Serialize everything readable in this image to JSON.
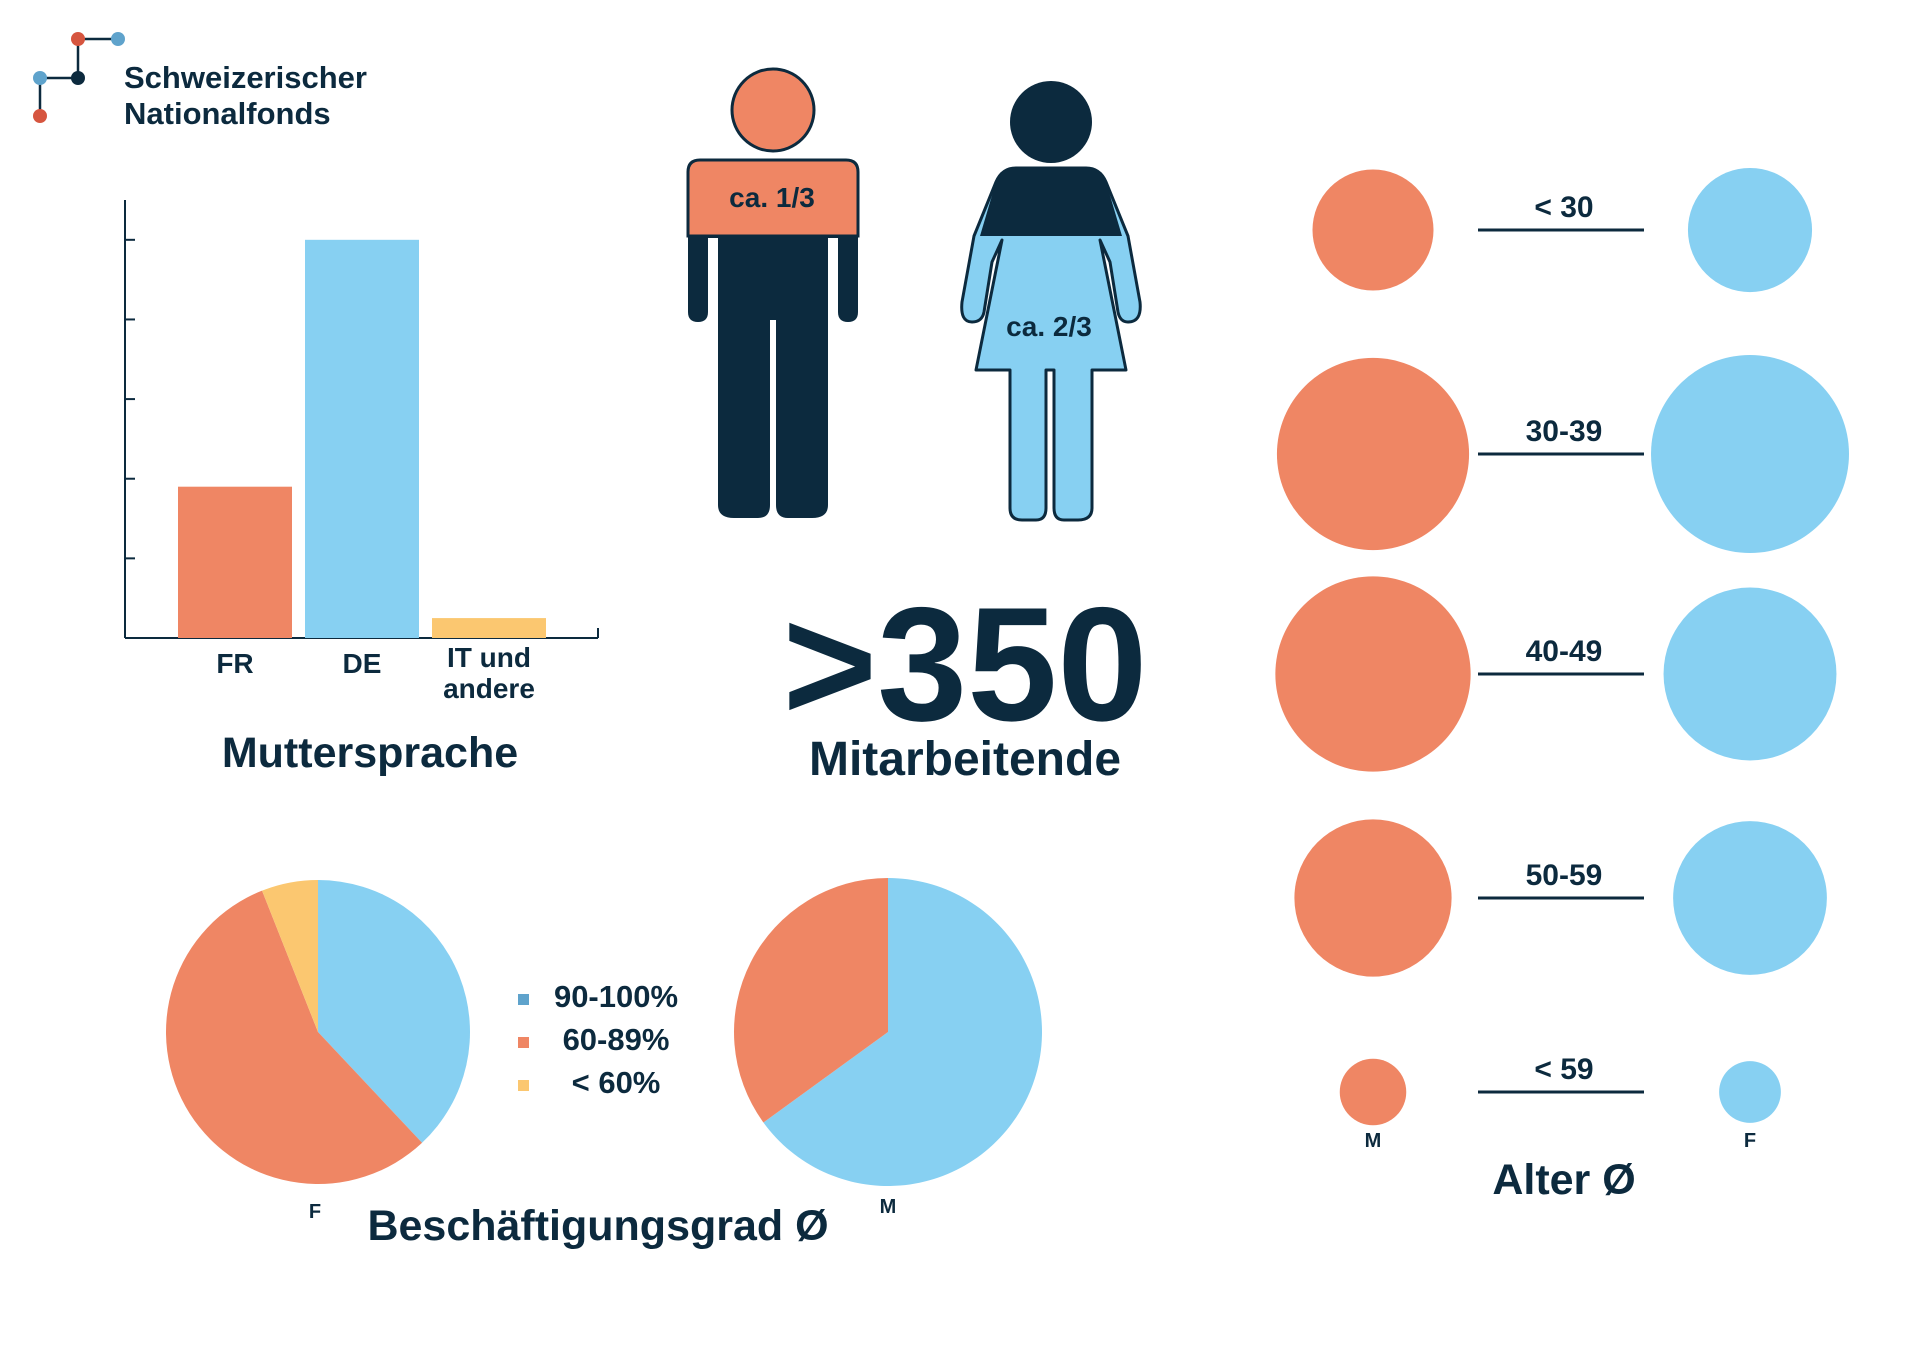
{
  "colors": {
    "navy": "#0c2a3e",
    "orange": "#ef8664",
    "blue": "#87d0f2",
    "yellow": "#fbc770",
    "logo_orange": "#d6553f",
    "logo_blue": "#5fa3cc"
  },
  "logo": {
    "line1": "Schweizerischer",
    "line2": "Nationalfonds"
  },
  "headline": {
    "value": ">350",
    "label": "Mitarbeitende"
  },
  "figures": {
    "male_share_label": "ca. 1/3",
    "female_share_label": "ca. 2/3"
  },
  "chart_data": [
    {
      "type": "bar",
      "title": "Muttersprache",
      "categories": [
        "FR",
        "DE",
        "IT und andere"
      ],
      "category_lines": [
        [
          "FR"
        ],
        [
          "DE"
        ],
        [
          "IT und",
          "andere"
        ]
      ],
      "values": [
        19,
        50,
        2.5
      ],
      "ylim": [
        0,
        55
      ],
      "yticks": [
        10,
        20,
        30,
        40,
        50
      ],
      "colors": [
        "#ef8664",
        "#87d0f2",
        "#fbc770"
      ],
      "show_tick_labels": false
    },
    {
      "type": "pie",
      "title": "Beschäftigungsgrad Ø",
      "legend": [
        "90-100%",
        "60-89%",
        "< 60%"
      ],
      "legend_colors": [
        "#5fa3cc",
        "#ef8664",
        "#fbc770"
      ],
      "pies": [
        {
          "name": "F",
          "slices": [
            {
              "label": "90-100%",
              "value": 38,
              "color": "#87d0f2"
            },
            {
              "label": "60-89%",
              "value": 56,
              "color": "#ef8664"
            },
            {
              "label": "< 60%",
              "value": 6,
              "color": "#fbc770"
            }
          ]
        },
        {
          "name": "M",
          "slices": [
            {
              "label": "90-100%",
              "value": 65,
              "color": "#87d0f2"
            },
            {
              "label": "60-89%",
              "value": 35,
              "color": "#ef8664"
            }
          ]
        }
      ]
    },
    {
      "type": "bubble",
      "title": "Alter Ø",
      "groups": [
        "M",
        "F"
      ],
      "categories": [
        "< 30",
        "30-39",
        "40-49",
        "50-59",
        "< 59"
      ],
      "series": [
        {
          "name": "M",
          "color": "#ef8664",
          "values": [
            9.6,
            24.2,
            25.0,
            16.2,
            2.9
          ]
        },
        {
          "name": "F",
          "color": "#87d0f2",
          "values": [
            10.1,
            25.7,
            19.6,
            15.5,
            2.5
          ]
        }
      ]
    }
  ]
}
